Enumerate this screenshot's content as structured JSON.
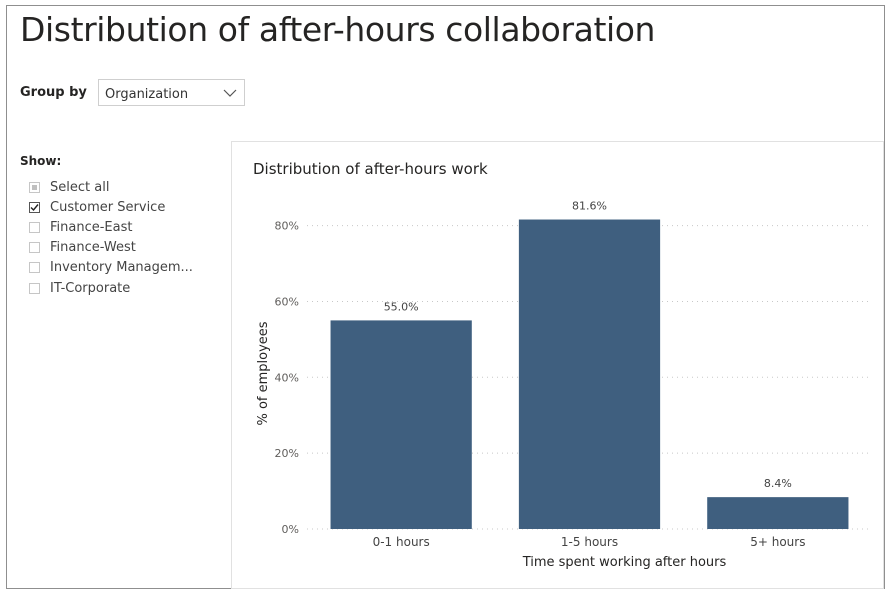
{
  "page": {
    "title": "Distribution of after-hours collaboration"
  },
  "group_by": {
    "label": "Group by",
    "selected": "Organization"
  },
  "filter": {
    "label": "Show:",
    "items": [
      {
        "label": "Select all",
        "state": "partial"
      },
      {
        "label": "Customer Service",
        "state": "checked"
      },
      {
        "label": "Finance-East",
        "state": "unchecked"
      },
      {
        "label": "Finance-West",
        "state": "unchecked"
      },
      {
        "label": "Inventory Managem...",
        "state": "unchecked"
      },
      {
        "label": "IT-Corporate",
        "state": "unchecked"
      }
    ]
  },
  "chart_data": {
    "type": "bar",
    "title": "Distribution of after-hours work",
    "categories": [
      "0-1 hours",
      "1-5 hours",
      "5+ hours"
    ],
    "values": [
      55.0,
      81.6,
      8.4
    ],
    "data_labels": [
      "55.0%",
      "81.6%",
      "8.4%"
    ],
    "xlabel": "Time spent working after hours",
    "ylabel": "% of employees",
    "ylim": [
      0,
      82
    ],
    "yticks": [
      0,
      20,
      40,
      60,
      80
    ],
    "ytick_labels": [
      "0%",
      "20%",
      "40%",
      "60%",
      "80%"
    ],
    "grid": true,
    "bar_color": "#3f5f7f"
  }
}
